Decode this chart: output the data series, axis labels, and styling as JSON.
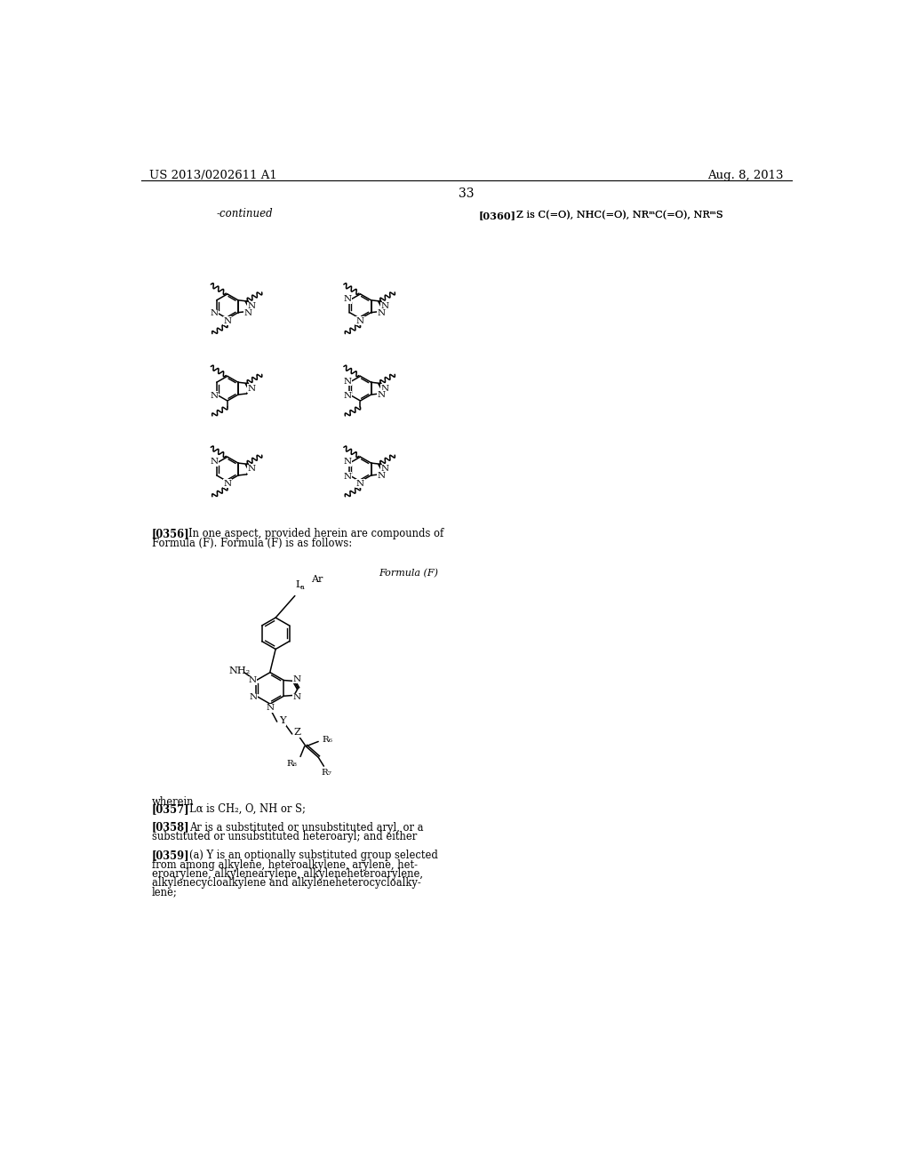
{
  "page_header_left": "US 2013/0202611 A1",
  "page_header_right": "Aug. 8, 2013",
  "page_number": "33",
  "continued_label": "-continued",
  "background_color": "#ffffff"
}
